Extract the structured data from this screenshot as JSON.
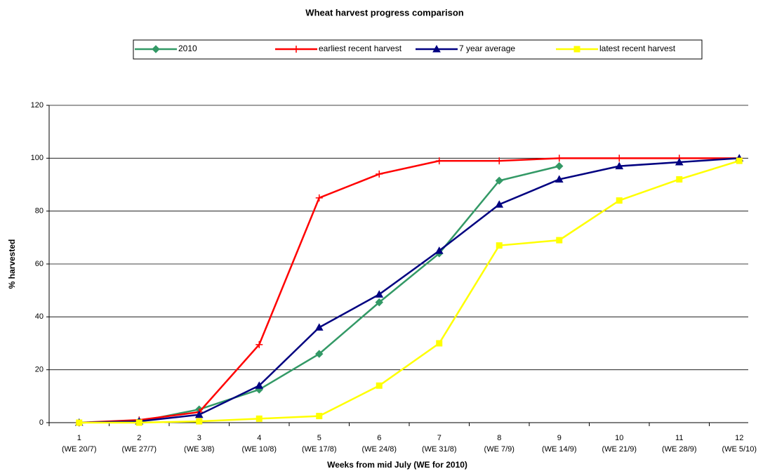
{
  "chart_data": {
    "type": "line",
    "title": "Wheat harvest progress comparison",
    "x_label": "Weeks from mid July (WE for 2010)",
    "y_label": "% harvested",
    "categories": [
      [
        "1",
        "(WE 20/7)"
      ],
      [
        "2",
        "(WE 27/7)"
      ],
      [
        "3",
        "(WE 3/8)"
      ],
      [
        "4",
        "(WE 10/8)"
      ],
      [
        "5",
        "(WE 17/8)"
      ],
      [
        "6",
        "(WE 24/8)"
      ],
      [
        "7",
        "(WE 31/8)"
      ],
      [
        "8",
        "(WE 7/9)"
      ],
      [
        "9",
        "(WE 14/9)"
      ],
      [
        "10",
        "(WE 21/9)"
      ],
      [
        "11",
        "(WE 28/9)"
      ],
      [
        "12",
        "(WE 5/10)"
      ]
    ],
    "series": [
      {
        "name": "2010",
        "color": "#339966",
        "marker": "diamond",
        "values": [
          0,
          0.5,
          5,
          12.5,
          26,
          45.5,
          64,
          91.5,
          97,
          null,
          null,
          null
        ]
      },
      {
        "name": "earliest recent harvest",
        "color": "#ff0000",
        "marker": "plus",
        "values": [
          0,
          1,
          4,
          29.5,
          85,
          94,
          99,
          99,
          100,
          100,
          100,
          100
        ]
      },
      {
        "name": "7 year average",
        "color": "#000080",
        "marker": "triangle",
        "values": [
          0,
          0.5,
          3,
          14,
          36,
          48.5,
          65,
          82.5,
          92,
          97,
          98.5,
          100
        ]
      },
      {
        "name": "latest recent harvest",
        "color": "#ffff00",
        "marker": "square",
        "values": [
          0,
          0,
          0.5,
          1.5,
          2.5,
          14,
          30,
          67,
          69,
          84,
          92,
          99
        ]
      }
    ],
    "ylim": [
      0,
      120
    ],
    "yticks": [
      0,
      20,
      40,
      60,
      80,
      100,
      120
    ],
    "grid": true,
    "legend": "top"
  }
}
